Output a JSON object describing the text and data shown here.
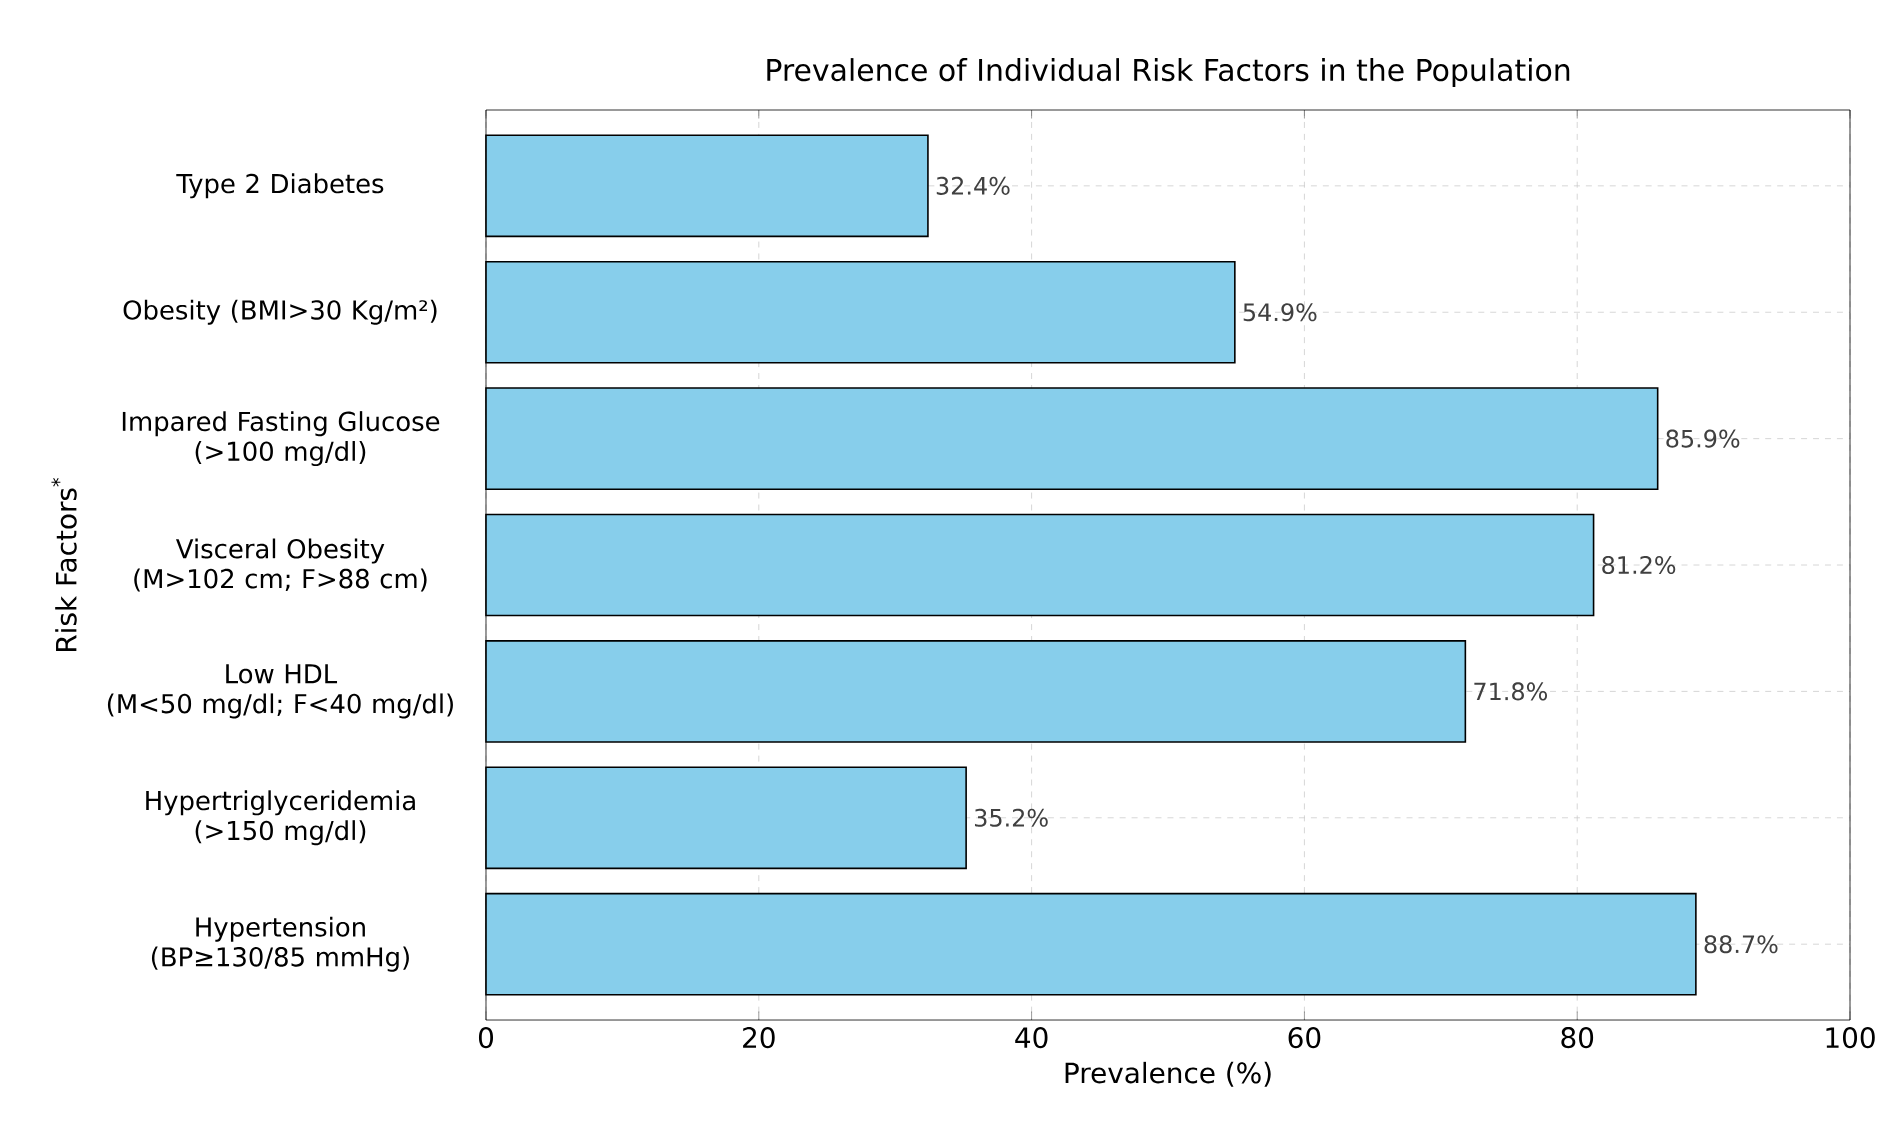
{
  "chart_data": {
    "type": "bar",
    "orientation": "horizontal",
    "title": "Prevalence of Individual Risk Factors in the Population",
    "xlabel": "Prevalence (%)",
    "ylabel": "Risk Factors$^{*}$",
    "categories": [
      "Type 2 Diabetes",
      "Obesity (BMI>30 Kg/m²)",
      "Impared Fasting Glucose\n(>100 mg/dl)",
      "Visceral Obesity\n(M>102 cm; F>88 cm)",
      "Low HDL\n(M<50 mg/dl; F<40 mg/dl)",
      "Hypertriglyceridemia\n(>150 mg/dl)",
      "Hypertension\n(BP≥130/85 mmHg)"
    ],
    "values": [
      32.4,
      54.9,
      85.9,
      81.2,
      71.8,
      35.2,
      88.7
    ],
    "value_labels": [
      "32.4%",
      "54.9%",
      "85.9%",
      "81.2%",
      "71.8%",
      "35.2%",
      "88.7%"
    ],
    "color": "#87ceeb",
    "xlim": [
      0,
      100
    ],
    "xticks": [
      0,
      20,
      40,
      60,
      80,
      100
    ],
    "grid": true
  }
}
